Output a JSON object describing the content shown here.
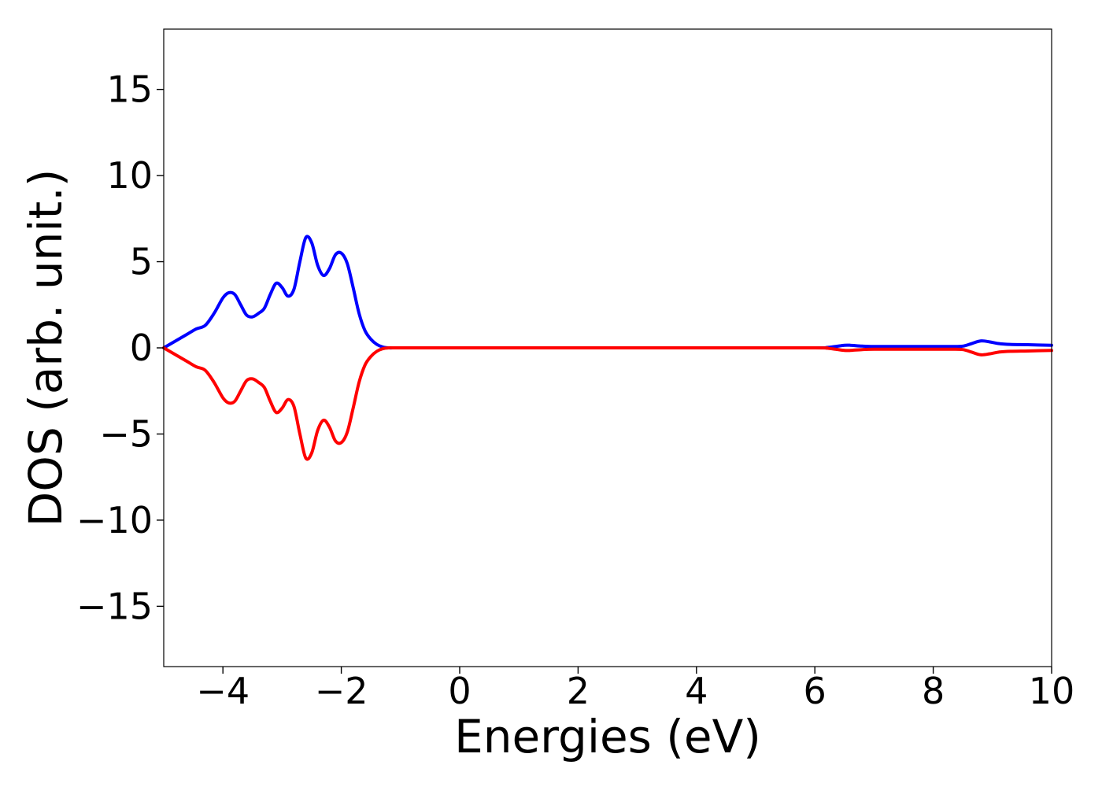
{
  "chart_data": {
    "type": "line",
    "title": "",
    "xlabel": "Energies (eV)",
    "ylabel": "DOS (arb. unit.)",
    "xlim": [
      -5,
      10
    ],
    "ylim": [
      -18.5,
      18.5
    ],
    "xticks": [
      -4,
      -2,
      0,
      2,
      4,
      6,
      8,
      10
    ],
    "yticks": [
      -15,
      -10,
      -5,
      0,
      5,
      10,
      15
    ],
    "xtick_labels": [
      "−4",
      "−2",
      "0",
      "2",
      "4",
      "6",
      "8",
      "10"
    ],
    "ytick_labels": [
      "−15",
      "−10",
      "−5",
      "0",
      "5",
      "10",
      "15"
    ],
    "grid": false,
    "legend": "none",
    "series": [
      {
        "color": "#0000ff",
        "x": [
          -5.0,
          -4.8,
          -4.6,
          -4.45,
          -4.3,
          -4.15,
          -4.0,
          -3.9,
          -3.8,
          -3.7,
          -3.6,
          -3.5,
          -3.4,
          -3.3,
          -3.2,
          -3.1,
          -3.0,
          -2.9,
          -2.8,
          -2.7,
          -2.6,
          -2.5,
          -2.4,
          -2.3,
          -2.2,
          -2.1,
          -2.0,
          -1.9,
          -1.8,
          -1.7,
          -1.6,
          -1.5,
          -1.4,
          -1.3,
          -1.2,
          -1.1,
          -1.0,
          -0.9,
          -0.8,
          -0.7,
          -0.6,
          -0.5,
          0.0,
          2.0,
          4.0,
          6.0,
          6.2,
          6.35,
          6.5,
          6.6,
          6.8,
          7.0,
          7.5,
          8.0,
          8.3,
          8.5,
          8.65,
          8.8,
          8.95,
          9.1,
          9.3,
          9.6,
          10.0
        ],
        "y": [
          0.0,
          0.4,
          0.8,
          1.1,
          1.3,
          2.0,
          2.9,
          3.2,
          3.1,
          2.5,
          1.9,
          1.8,
          2.0,
          2.3,
          3.1,
          3.75,
          3.5,
          3.0,
          3.4,
          5.0,
          6.4,
          6.1,
          4.8,
          4.2,
          4.6,
          5.4,
          5.5,
          4.9,
          3.5,
          2.0,
          1.0,
          0.5,
          0.2,
          0.05,
          0.0,
          0.0,
          0.0,
          0.0,
          0.0,
          0.0,
          0.0,
          0.0,
          0.0,
          0.0,
          0.0,
          0.0,
          0.02,
          0.08,
          0.15,
          0.15,
          0.1,
          0.08,
          0.08,
          0.08,
          0.08,
          0.1,
          0.25,
          0.4,
          0.35,
          0.25,
          0.2,
          0.18,
          0.15
        ]
      },
      {
        "color": "#ff0000",
        "x": [
          -5.0,
          -4.8,
          -4.6,
          -4.45,
          -4.3,
          -4.15,
          -4.0,
          -3.9,
          -3.8,
          -3.7,
          -3.6,
          -3.5,
          -3.4,
          -3.3,
          -3.2,
          -3.1,
          -3.0,
          -2.9,
          -2.8,
          -2.7,
          -2.6,
          -2.5,
          -2.4,
          -2.3,
          -2.2,
          -2.1,
          -2.0,
          -1.9,
          -1.8,
          -1.7,
          -1.6,
          -1.5,
          -1.4,
          -1.3,
          -1.2,
          -1.1,
          -1.0,
          -0.9,
          -0.8,
          -0.7,
          -0.6,
          -0.5,
          0.0,
          2.0,
          4.0,
          6.0,
          6.2,
          6.35,
          6.5,
          6.6,
          6.8,
          7.0,
          7.5,
          8.0,
          8.3,
          8.5,
          8.65,
          8.8,
          8.95,
          9.1,
          9.3,
          9.6,
          10.0
        ],
        "y": [
          0.0,
          -0.4,
          -0.8,
          -1.1,
          -1.3,
          -2.0,
          -2.9,
          -3.2,
          -3.1,
          -2.5,
          -1.9,
          -1.8,
          -2.0,
          -2.3,
          -3.1,
          -3.75,
          -3.5,
          -3.0,
          -3.4,
          -5.0,
          -6.4,
          -6.1,
          -4.8,
          -4.2,
          -4.6,
          -5.4,
          -5.5,
          -4.9,
          -3.5,
          -2.0,
          -1.0,
          -0.5,
          -0.2,
          -0.05,
          0.0,
          0.0,
          0.0,
          0.0,
          0.0,
          0.0,
          0.0,
          0.0,
          0.0,
          0.0,
          0.0,
          0.0,
          -0.02,
          -0.08,
          -0.15,
          -0.15,
          -0.1,
          -0.08,
          -0.08,
          -0.08,
          -0.08,
          -0.1,
          -0.25,
          -0.4,
          -0.35,
          -0.25,
          -0.2,
          -0.18,
          -0.15
        ]
      }
    ]
  }
}
